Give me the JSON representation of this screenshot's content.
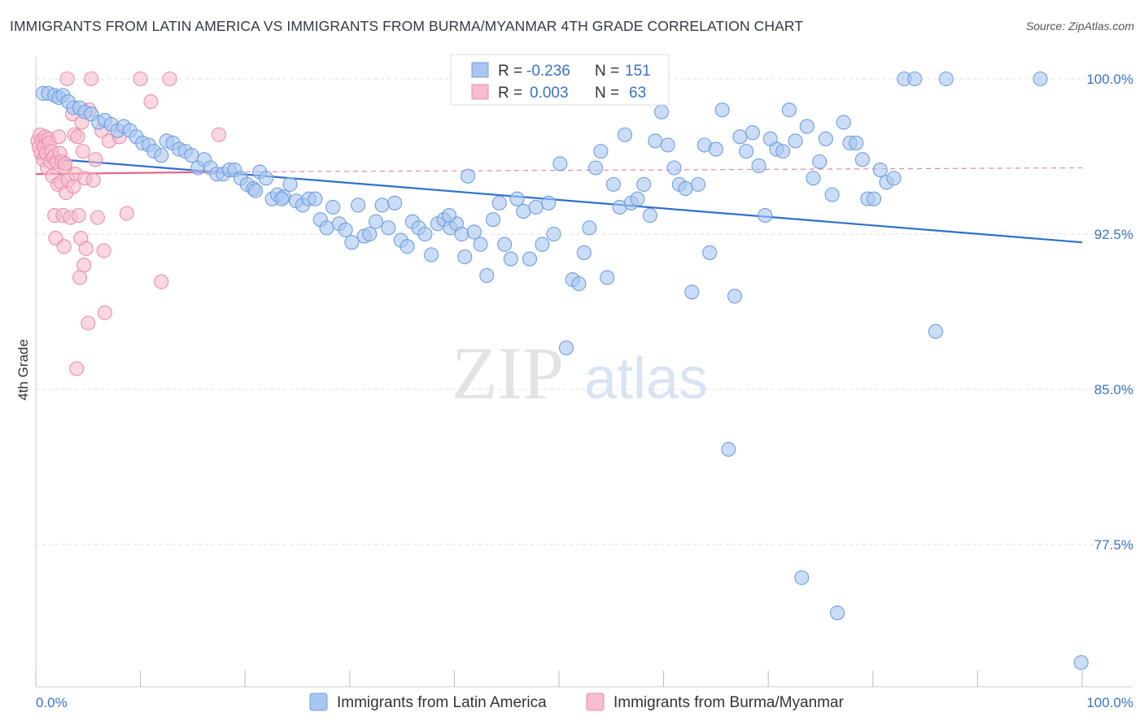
{
  "title": "IMMIGRANTS FROM LATIN AMERICA VS IMMIGRANTS FROM BURMA/MYANMAR 4TH GRADE CORRELATION CHART",
  "source": "Source: ZipAtlas.com",
  "watermark": {
    "zip": "ZIP",
    "atlas": "atlas"
  },
  "colors": {
    "blue_fill": "#a9c6f0",
    "blue_stroke": "#6f9ee0",
    "blue_line": "#2f6fcf",
    "pink_fill": "#f7bccd",
    "pink_stroke": "#ea8fab",
    "pink_line": "#e5638f",
    "axis_text": "#3b73c4",
    "grid": "#dcdcdc"
  },
  "legend": {
    "rows": [
      {
        "r_label": "R =",
        "r_value": "-0.236",
        "n_label": "N =",
        "n_value": "151"
      },
      {
        "r_label": "R =",
        "r_value": "0.003",
        "n_label": "N =",
        "n_value": "63"
      }
    ]
  },
  "chart_data": {
    "type": "scatter",
    "xlabel": "",
    "ylabel": "4th Grade",
    "xlim": [
      0,
      100
    ],
    "ylim": [
      71.5,
      100.9
    ],
    "x_tick_labels": [
      "0.0%",
      "100.0%"
    ],
    "y_ticks": [
      {
        "value": 100.0,
        "label": "100.0%"
      },
      {
        "value": 92.5,
        "label": "92.5%"
      },
      {
        "value": 85.0,
        "label": "85.0%"
      },
      {
        "value": 77.5,
        "label": "77.5%"
      }
    ],
    "series": [
      {
        "name": "Immigrants from Latin America",
        "color": "blue",
        "trend": {
          "x0": 0,
          "y0": 96.2,
          "x1": 100,
          "y1": 92.1
        },
        "points": [
          [
            0.7,
            99.3
          ],
          [
            1.2,
            99.3
          ],
          [
            1.8,
            99.2
          ],
          [
            2.2,
            99.1
          ],
          [
            2.6,
            99.2
          ],
          [
            3.1,
            98.9
          ],
          [
            3.6,
            98.6
          ],
          [
            4.2,
            98.6
          ],
          [
            4.7,
            98.4
          ],
          [
            5.3,
            98.3
          ],
          [
            6.0,
            97.9
          ],
          [
            6.6,
            98.0
          ],
          [
            7.2,
            97.8
          ],
          [
            7.8,
            97.5
          ],
          [
            8.4,
            97.7
          ],
          [
            9.0,
            97.5
          ],
          [
            9.6,
            97.2
          ],
          [
            10.2,
            96.9
          ],
          [
            10.8,
            96.8
          ],
          [
            11.3,
            96.5
          ],
          [
            12.0,
            96.3
          ],
          [
            12.5,
            97.0
          ],
          [
            13.1,
            96.9
          ],
          [
            13.7,
            96.6
          ],
          [
            14.3,
            96.5
          ],
          [
            14.9,
            96.3
          ],
          [
            15.5,
            95.7
          ],
          [
            16.1,
            96.1
          ],
          [
            16.7,
            95.7
          ],
          [
            17.3,
            95.4
          ],
          [
            17.9,
            95.4
          ],
          [
            18.5,
            95.6
          ],
          [
            19.0,
            95.6
          ],
          [
            19.6,
            95.2
          ],
          [
            20.2,
            94.9
          ],
          [
            20.8,
            94.7
          ],
          [
            21.4,
            95.5
          ],
          [
            22.0,
            95.2
          ],
          [
            22.6,
            94.2
          ],
          [
            23.1,
            94.4
          ],
          [
            23.7,
            94.3
          ],
          [
            24.3,
            94.9
          ],
          [
            24.9,
            94.1
          ],
          [
            25.5,
            93.9
          ],
          [
            26.1,
            94.2
          ],
          [
            26.7,
            94.2
          ],
          [
            27.2,
            93.2
          ],
          [
            27.8,
            92.8
          ],
          [
            28.4,
            93.8
          ],
          [
            29.0,
            93.0
          ],
          [
            29.6,
            92.7
          ],
          [
            30.2,
            92.1
          ],
          [
            30.8,
            93.9
          ],
          [
            31.4,
            92.4
          ],
          [
            31.9,
            92.5
          ],
          [
            32.5,
            93.1
          ],
          [
            33.1,
            93.9
          ],
          [
            33.7,
            92.8
          ],
          [
            34.3,
            94.0
          ],
          [
            34.9,
            92.2
          ],
          [
            35.5,
            91.9
          ],
          [
            36.0,
            93.1
          ],
          [
            36.6,
            92.8
          ],
          [
            37.2,
            92.5
          ],
          [
            37.8,
            91.5
          ],
          [
            38.4,
            93.0
          ],
          [
            39.0,
            93.2
          ],
          [
            39.6,
            92.8
          ],
          [
            40.2,
            93.0
          ],
          [
            40.7,
            92.5
          ],
          [
            41.3,
            95.3
          ],
          [
            41.9,
            92.6
          ],
          [
            42.5,
            92.0
          ],
          [
            43.1,
            90.5
          ],
          [
            43.7,
            93.2
          ],
          [
            44.3,
            94.0
          ],
          [
            44.8,
            92.0
          ],
          [
            45.4,
            91.3
          ],
          [
            46.0,
            94.2
          ],
          [
            46.6,
            93.6
          ],
          [
            47.2,
            91.3
          ],
          [
            47.8,
            93.8
          ],
          [
            48.4,
            92.0
          ],
          [
            49.0,
            94.0
          ],
          [
            49.5,
            92.5
          ],
          [
            50.1,
            95.9
          ],
          [
            50.7,
            87.0
          ],
          [
            51.3,
            90.3
          ],
          [
            51.9,
            90.1
          ],
          [
            52.4,
            91.6
          ],
          [
            52.9,
            92.8
          ],
          [
            53.5,
            95.7
          ],
          [
            54.0,
            96.5
          ],
          [
            54.6,
            90.4
          ],
          [
            55.2,
            94.9
          ],
          [
            55.8,
            93.8
          ],
          [
            56.3,
            97.3
          ],
          [
            56.9,
            94.0
          ],
          [
            57.5,
            94.2
          ],
          [
            58.1,
            94.9
          ],
          [
            58.7,
            93.4
          ],
          [
            59.2,
            97.0
          ],
          [
            59.8,
            98.4
          ],
          [
            60.4,
            96.8
          ],
          [
            61.0,
            95.7
          ],
          [
            61.5,
            94.9
          ],
          [
            62.1,
            94.7
          ],
          [
            62.7,
            89.7
          ],
          [
            63.3,
            94.9
          ],
          [
            63.9,
            96.8
          ],
          [
            64.4,
            91.6
          ],
          [
            65.0,
            96.6
          ],
          [
            65.6,
            98.5
          ],
          [
            66.2,
            82.1
          ],
          [
            66.8,
            89.5
          ],
          [
            67.3,
            97.2
          ],
          [
            67.9,
            96.5
          ],
          [
            68.5,
            97.4
          ],
          [
            69.1,
            95.8
          ],
          [
            69.7,
            93.4
          ],
          [
            70.2,
            97.1
          ],
          [
            70.8,
            96.6
          ],
          [
            71.4,
            96.5
          ],
          [
            72.0,
            98.5
          ],
          [
            72.6,
            97.0
          ],
          [
            73.2,
            75.9
          ],
          [
            73.7,
            97.7
          ],
          [
            74.3,
            95.2
          ],
          [
            74.9,
            96.0
          ],
          [
            75.5,
            97.1
          ],
          [
            76.1,
            94.4
          ],
          [
            76.6,
            74.2
          ],
          [
            77.2,
            97.9
          ],
          [
            77.8,
            96.9
          ],
          [
            78.4,
            96.9
          ],
          [
            79.0,
            96.1
          ],
          [
            79.5,
            94.2
          ],
          [
            80.1,
            94.2
          ],
          [
            80.7,
            95.6
          ],
          [
            81.3,
            95.0
          ],
          [
            82.0,
            95.2
          ],
          [
            83.0,
            100.0
          ],
          [
            84.0,
            100.0
          ],
          [
            86.0,
            87.8
          ],
          [
            87.0,
            100.0
          ],
          [
            96.0,
            100.0
          ],
          [
            99.9,
            71.8
          ],
          [
            41.0,
            91.4
          ],
          [
            39.5,
            93.4
          ],
          [
            21.0,
            94.6
          ],
          [
            23.5,
            94.2
          ]
        ]
      },
      {
        "name": "Immigrants from Burma/Myanmar",
        "color": "pink",
        "trend": {
          "x0": 0,
          "y0": 95.4,
          "x1": 17.5,
          "y1": 95.5,
          "x2": 100,
          "y2": 95.7
        },
        "points": [
          [
            0.2,
            97.0
          ],
          [
            0.3,
            96.7
          ],
          [
            0.4,
            97.3
          ],
          [
            0.5,
            96.4
          ],
          [
            0.6,
            97.0
          ],
          [
            0.7,
            96.1
          ],
          [
            0.8,
            96.7
          ],
          [
            0.9,
            97.2
          ],
          [
            1.0,
            96.4
          ],
          [
            1.1,
            95.7
          ],
          [
            1.2,
            97.1
          ],
          [
            1.3,
            96.9
          ],
          [
            1.4,
            96.0
          ],
          [
            1.5,
            96.5
          ],
          [
            1.6,
            95.3
          ],
          [
            1.7,
            96.2
          ],
          [
            1.8,
            93.4
          ],
          [
            1.9,
            92.3
          ],
          [
            2.0,
            96.0
          ],
          [
            2.1,
            94.9
          ],
          [
            2.2,
            97.2
          ],
          [
            2.3,
            96.4
          ],
          [
            2.4,
            95.0
          ],
          [
            2.5,
            96.0
          ],
          [
            2.6,
            93.4
          ],
          [
            2.7,
            91.9
          ],
          [
            2.8,
            95.7
          ],
          [
            2.9,
            94.5
          ],
          [
            3.0,
            100.0
          ],
          [
            3.1,
            95.1
          ],
          [
            3.3,
            93.3
          ],
          [
            3.5,
            98.3
          ],
          [
            3.6,
            94.8
          ],
          [
            3.7,
            97.3
          ],
          [
            3.8,
            95.4
          ],
          [
            3.9,
            86.0
          ],
          [
            4.0,
            97.2
          ],
          [
            4.1,
            93.4
          ],
          [
            4.2,
            90.4
          ],
          [
            4.3,
            92.3
          ],
          [
            4.5,
            96.5
          ],
          [
            4.6,
            91.0
          ],
          [
            4.7,
            95.2
          ],
          [
            4.8,
            91.8
          ],
          [
            5.0,
            88.2
          ],
          [
            5.1,
            98.5
          ],
          [
            5.3,
            100.0
          ],
          [
            5.5,
            95.1
          ],
          [
            5.7,
            96.1
          ],
          [
            5.9,
            93.3
          ],
          [
            6.3,
            97.5
          ],
          [
            6.5,
            91.7
          ],
          [
            6.6,
            88.7
          ],
          [
            7.0,
            97.0
          ],
          [
            8.0,
            97.2
          ],
          [
            8.7,
            93.5
          ],
          [
            10.0,
            100.0
          ],
          [
            11.0,
            98.9
          ],
          [
            12.0,
            90.2
          ],
          [
            12.8,
            100.0
          ],
          [
            17.5,
            97.3
          ],
          [
            4.4,
            97.9
          ],
          [
            2.8,
            95.9
          ]
        ]
      }
    ]
  },
  "bottom_legend": [
    {
      "label": "Immigrants from Latin America",
      "color": "blue"
    },
    {
      "label": "Immigrants from Burma/Myanmar",
      "color": "pink"
    }
  ]
}
